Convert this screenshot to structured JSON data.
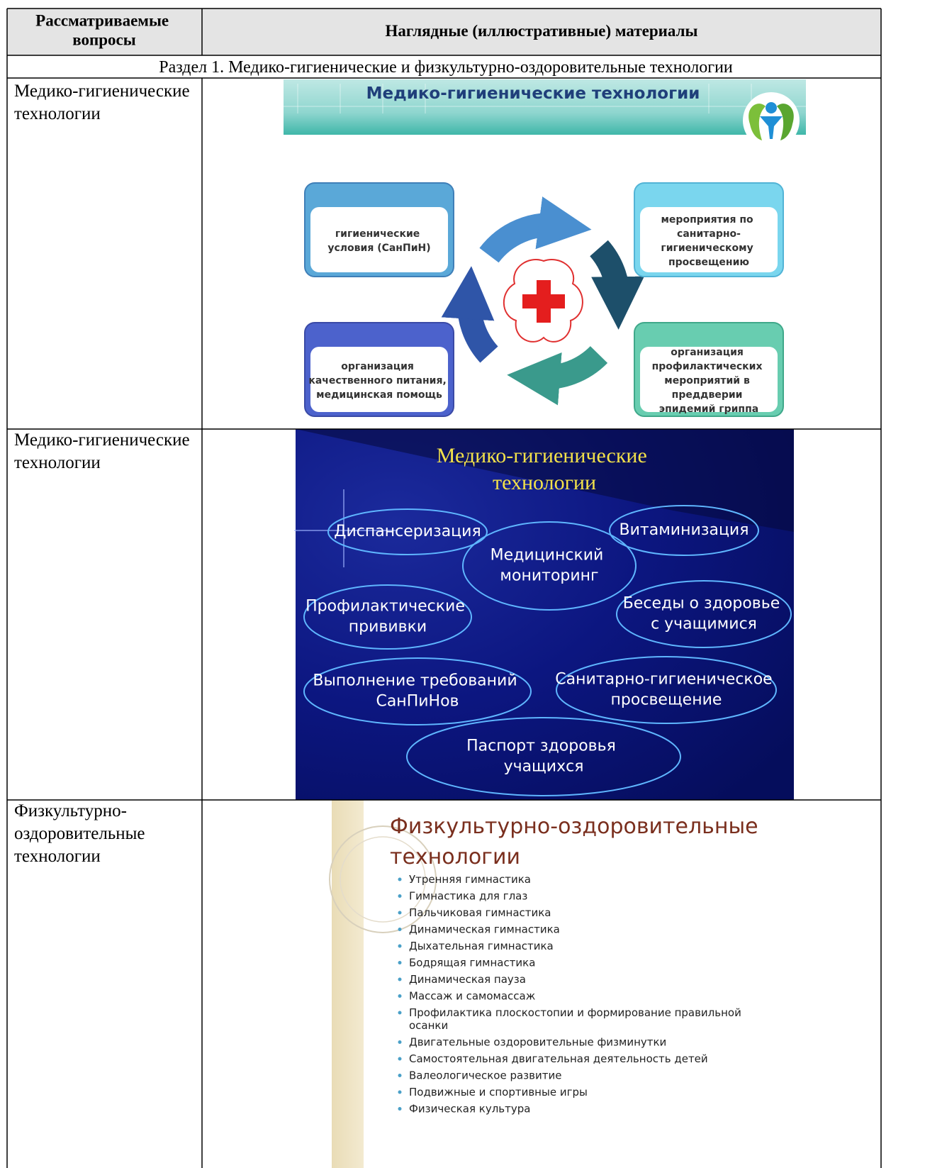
{
  "table": {
    "header": {
      "topic": "Рассматриваемые вопросы",
      "materials": "Наглядные (иллюстративные) материалы"
    },
    "section": "Раздел 1. Медико-гигиенические и физкультурно-оздоровительные технологии",
    "rows": [
      {
        "topic": "Медико-гигиенические технологии",
        "slide": {
          "title": "Медико-гигиенические технологии",
          "boxes": [
            "гигиенические условия (СанПиН)",
            "мероприятия по санитарно-гигиеническому просвещению",
            "организация качественного питания, медицинская помощь",
            "организация профилактических мероприятий в преддверии эпидемий гриппа"
          ]
        }
      },
      {
        "topic": "Медико-гигиенические технологии",
        "slide": {
          "title": "Медико-гигиенические технологии",
          "items": [
            "Диспансеризация",
            "Медицинский мониторинг",
            "Витаминизация",
            "Профилактические прививки",
            "Беседы о здоровье с учащимися",
            "Выполнение требований СанПиНов",
            "Санитарно-гигиеническое просвещение",
            "Паспорт здоровья учащихся"
          ]
        }
      },
      {
        "topic": "Физкультурно-оздоровительные технологии",
        "slide": {
          "title": "Физкультурно-оздоровительные технологии",
          "items": [
            "Утренняя гимнастика",
            "Гимнастика для глаз",
            "Пальчиковая гимнастика",
            "Динамическая гимнастика",
            "Дыхательная гимнастика",
            "Бодрящая гимнастика",
            "Динамическая пауза",
            "Массаж и самомассаж",
            "Профилактика плоскостопии и формирование правильной осанки",
            "Двигательные оздоровительные физминутки",
            "Самостоятельная двигательная деятельность детей",
            "Валеологическое развитие",
            "Подвижные и спортивные игры",
            "Физическая культура"
          ]
        }
      }
    ]
  }
}
